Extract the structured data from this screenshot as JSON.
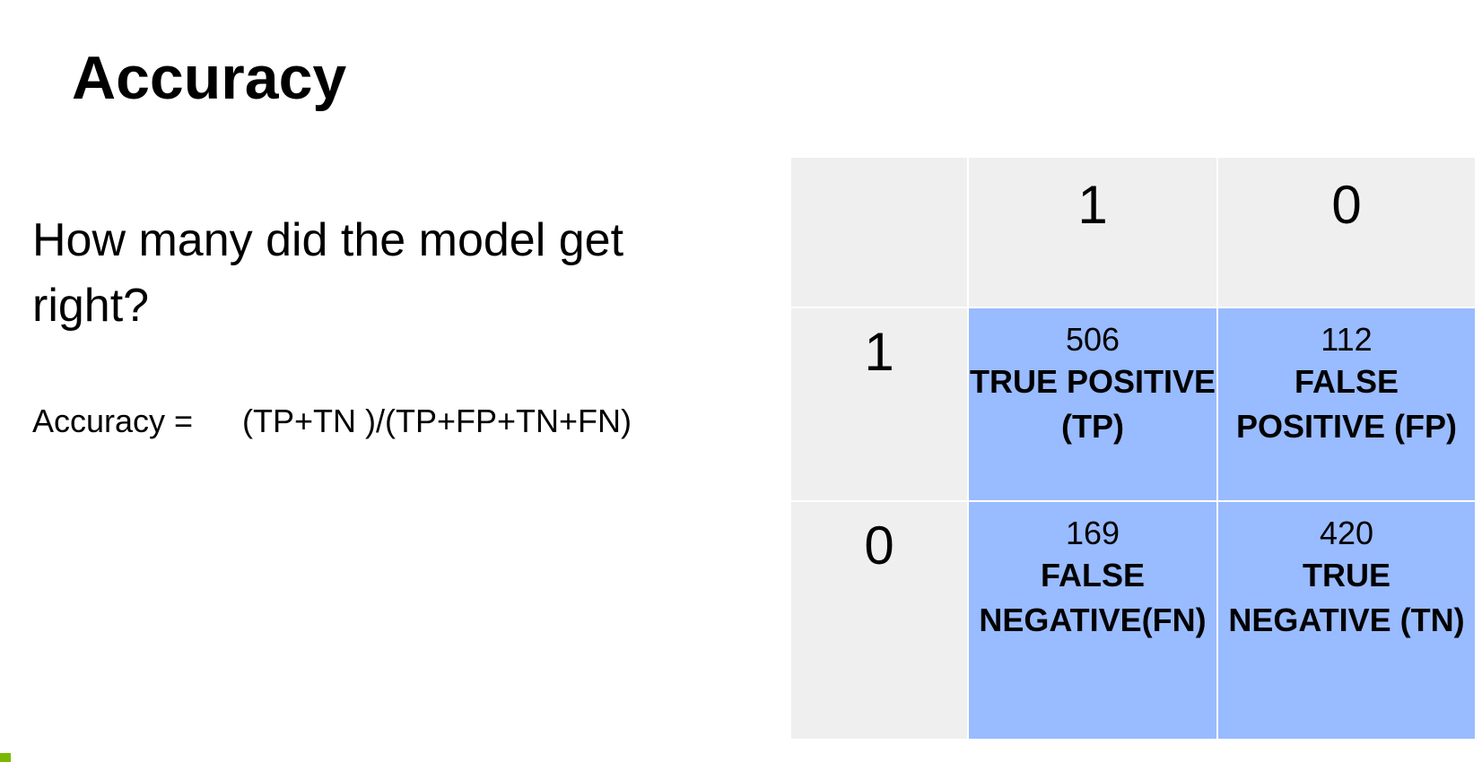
{
  "slide": {
    "title": "Accuracy",
    "question": "How many did the model get right?",
    "formula": {
      "label": "Accuracy =",
      "expression": "(TP+TN )/(TP+FP+TN+FN)"
    }
  },
  "matrix": {
    "column_headers": [
      "1",
      "0"
    ],
    "row_headers": [
      "1",
      "0"
    ],
    "cells": [
      [
        {
          "count": "506",
          "label": "TRUE POSITIVE (TP)"
        },
        {
          "count": "112",
          "label": "FALSE POSITIVE (FP)"
        }
      ],
      [
        {
          "count": "169",
          "label": "FALSE NEGATIVE(FN)"
        },
        {
          "count": "420",
          "label": "TRUE NEGATIVE (TN)"
        }
      ]
    ]
  },
  "colors": {
    "cell_fill": "#99bbff",
    "header_fill": "#efefef",
    "accent": "#7ab800"
  }
}
